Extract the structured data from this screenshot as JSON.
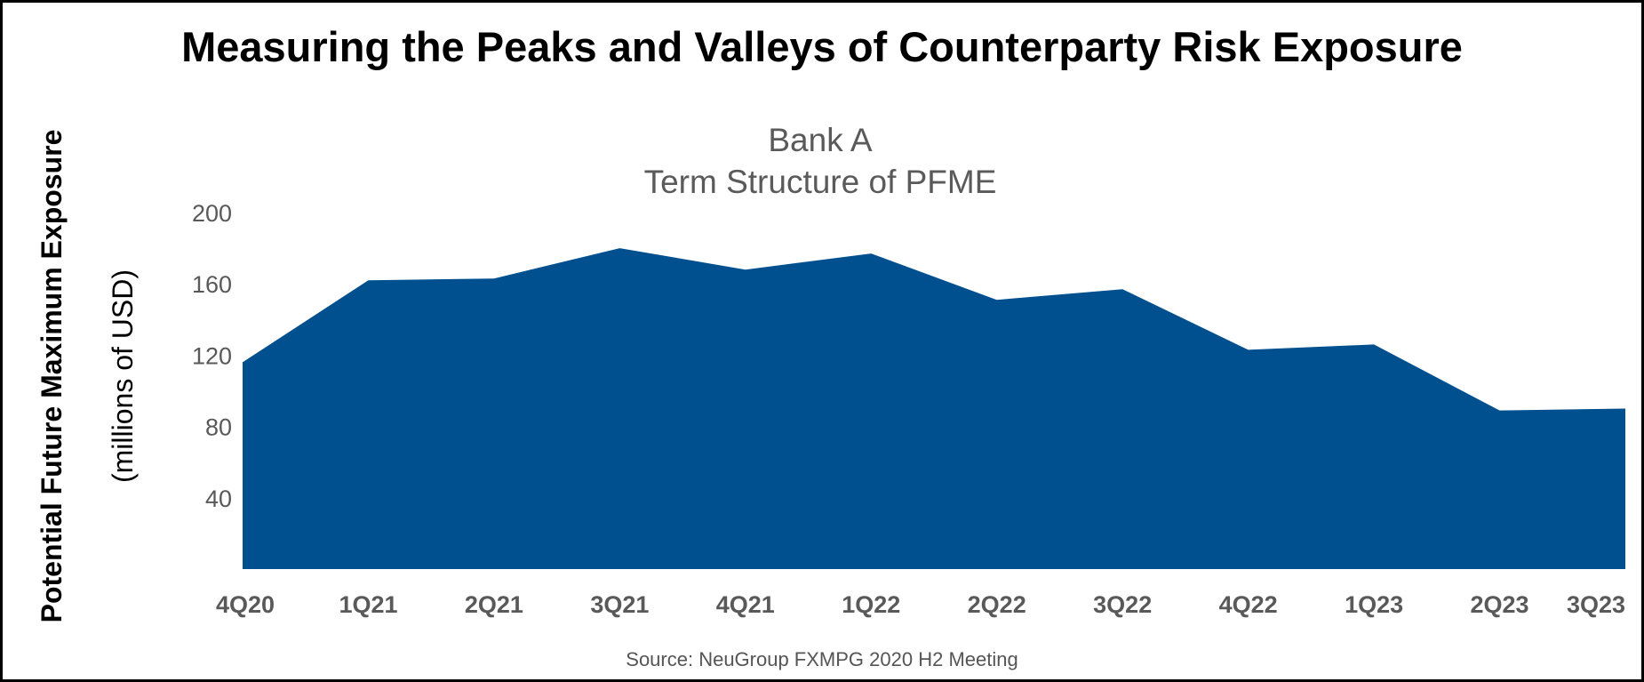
{
  "header": {
    "title": "Measuring the Peaks and Valleys of Counterparty Risk Exposure"
  },
  "footer": {
    "source": "Source: NeuGroup FXMPG 2020 H2 Meeting"
  },
  "colors": {
    "area_fill": "#00508F"
  },
  "chart_data": {
    "type": "area",
    "title": "Bank A",
    "subtitle": "Term Structure of PFME",
    "xlabel": "",
    "ylabel": "Potential Future Maximum Exposure",
    "ylabel_units": "(millions of USD)",
    "ylim": [
      0,
      200
    ],
    "yticks": [
      40,
      80,
      120,
      160,
      200
    ],
    "grid": false,
    "legend": "none",
    "x_tick_labels": [
      "4Q20",
      "1Q21",
      "2Q21",
      "3Q21",
      "4Q21",
      "1Q22",
      "2Q22",
      "3Q22",
      "4Q22",
      "1Q23",
      "2Q23",
      "3Q23"
    ],
    "series": [
      {
        "x": [
          "4Q20",
          "1Q21",
          "2Q21",
          "3Q21",
          "4Q21",
          "1Q22",
          "2Q22",
          "3Q22",
          "4Q22",
          "1Q23",
          "2Q23",
          "3Q23"
        ],
        "values": [
          116,
          162,
          163,
          180,
          168,
          177,
          151,
          157,
          123,
          126,
          89,
          90
        ]
      }
    ]
  }
}
